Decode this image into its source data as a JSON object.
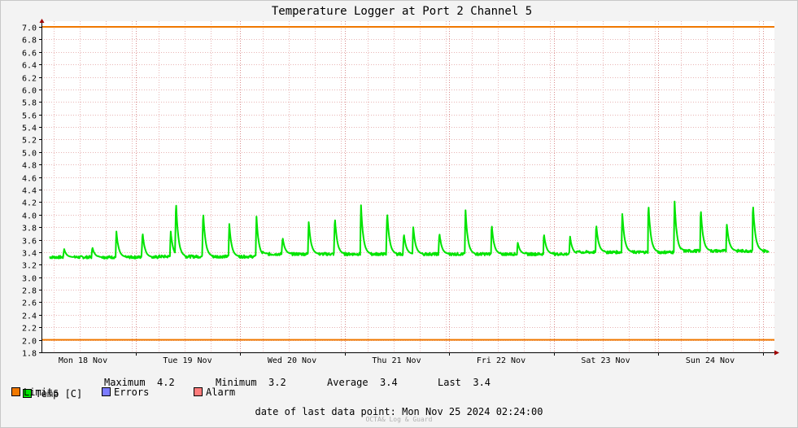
{
  "chart_data": {
    "type": "line",
    "title": "Temperature Logger at Port 2 Channel 5",
    "ylim": [
      1.8,
      7.0
    ],
    "yticks": [
      "7.0",
      "6.8",
      "6.6",
      "6.4",
      "6.2",
      "6.0",
      "5.8",
      "5.6",
      "5.4",
      "5.2",
      "5.0",
      "4.8",
      "4.6",
      "4.4",
      "4.2",
      "4.0",
      "3.8",
      "3.6",
      "3.4",
      "3.2",
      "3.0",
      "2.8",
      "2.6",
      "2.4",
      "2.2",
      "2.0",
      "1.8"
    ],
    "x_categories": [
      "Mon 18 Nov",
      "Tue 19 Nov",
      "Wed 20 Nov",
      "Thu 21 Nov",
      "Fri 22 Nov",
      "Sat 23 Nov",
      "Sun 24 Nov"
    ],
    "limits": [
      7.0,
      2.0
    ],
    "grid": true,
    "series": [
      {
        "name": "Temp [C]",
        "color": "#00e400",
        "base_levels": [
          3.32,
          3.33,
          3.37,
          3.37,
          3.37,
          3.4,
          3.42
        ],
        "spikes": [
          {
            "day": 0.1,
            "value": 3.45
          },
          {
            "day": 0.37,
            "value": 3.48
          },
          {
            "day": 0.6,
            "value": 3.73
          },
          {
            "day": 0.85,
            "value": 3.72
          },
          {
            "day": 1.12,
            "value": 3.73
          },
          {
            "day": 1.17,
            "value": 4.22
          },
          {
            "day": 1.43,
            "value": 4.05
          },
          {
            "day": 1.68,
            "value": 3.85
          },
          {
            "day": 1.94,
            "value": 3.97
          },
          {
            "day": 2.19,
            "value": 3.64
          },
          {
            "day": 2.44,
            "value": 3.88
          },
          {
            "day": 2.69,
            "value": 3.96
          },
          {
            "day": 2.94,
            "value": 4.15
          },
          {
            "day": 3.19,
            "value": 4.05
          },
          {
            "day": 3.35,
            "value": 3.7
          },
          {
            "day": 3.44,
            "value": 3.8
          },
          {
            "day": 3.69,
            "value": 3.71
          },
          {
            "day": 3.94,
            "value": 4.07
          },
          {
            "day": 4.19,
            "value": 3.85
          },
          {
            "day": 4.44,
            "value": 3.55
          },
          {
            "day": 4.69,
            "value": 3.7
          },
          {
            "day": 4.94,
            "value": 3.65
          },
          {
            "day": 5.19,
            "value": 3.85
          },
          {
            "day": 5.44,
            "value": 4.01
          },
          {
            "day": 5.69,
            "value": 4.18
          },
          {
            "day": 5.94,
            "value": 4.21
          },
          {
            "day": 6.19,
            "value": 4.1
          },
          {
            "day": 6.44,
            "value": 3.84
          },
          {
            "day": 6.69,
            "value": 4.18
          }
        ]
      }
    ]
  },
  "legend": {
    "temp_label": "Temp [C]",
    "maximum_label": "Maximum",
    "maximum_value": "4.2",
    "minimum_label": "Minimum",
    "minimum_value": "3.2",
    "average_label": "Average",
    "average_value": "3.4",
    "last_label": "Last",
    "last_value": "3.4",
    "limits_label": "Limits",
    "errors_label": "Errors",
    "alarm_label": "Alarm",
    "colors": {
      "temp": "#00e400",
      "limits": "#f07800",
      "errors": "#7b7bff",
      "alarm": "#ff7b7b"
    }
  },
  "footer": {
    "last_point_label": "date of last data point:",
    "last_point_value": "Mon Nov 25 2024 02:24:00",
    "credit": "OCTA& Log & Guard"
  }
}
